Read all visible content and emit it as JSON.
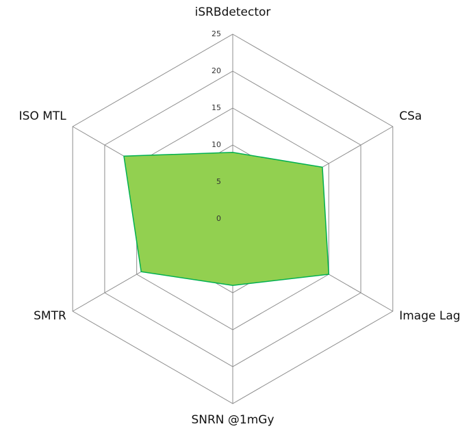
{
  "chart_data": {
    "type": "radar",
    "categories": [
      "iSRBdetector",
      "CSa",
      "Image Lag",
      "SNRN @1mGy",
      "SMTR",
      "ISO MTL"
    ],
    "values": [
      9,
      14,
      15,
      9,
      14.3,
      17
    ],
    "color": "#92d050",
    "line_color": "#00b050",
    "ylim": [
      0,
      25
    ],
    "yticks": [
      0,
      5,
      10,
      15,
      20,
      25
    ],
    "grid": true
  }
}
